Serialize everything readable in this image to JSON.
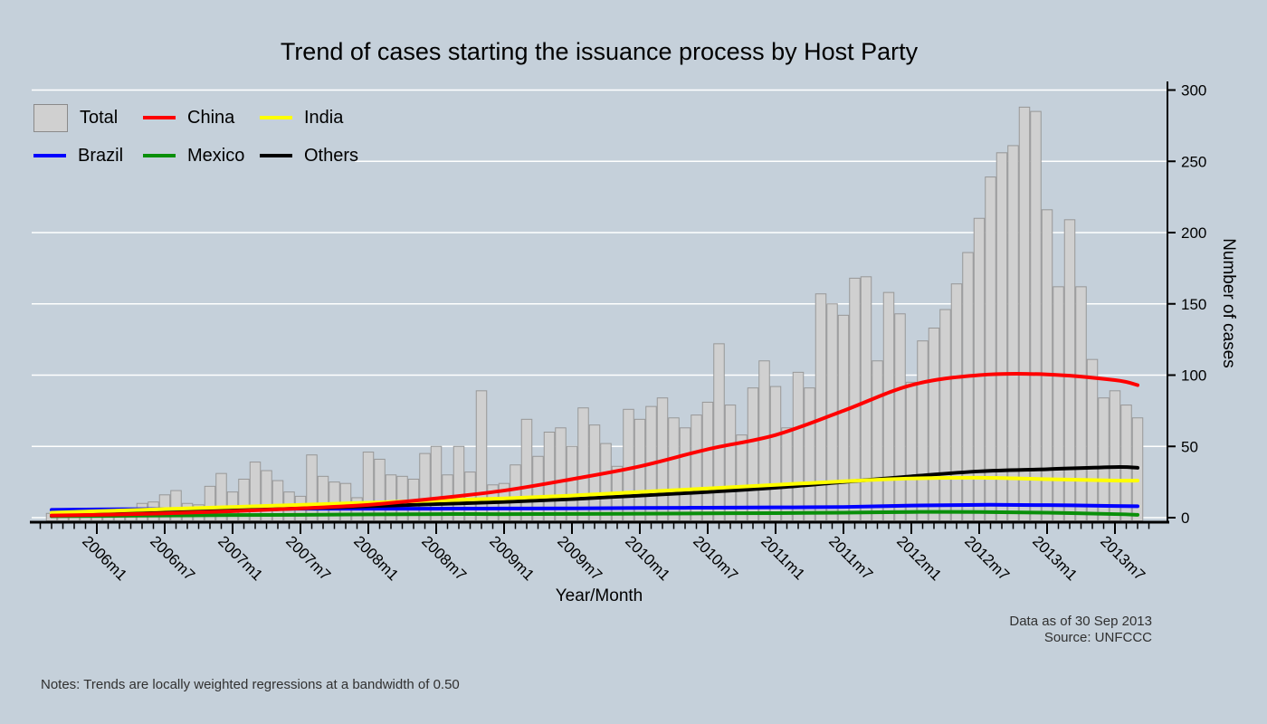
{
  "colors": {
    "background": "#c5d0da",
    "grid": "#ffffff",
    "axis": "#000000",
    "bar_fill": "#d0d0d0",
    "bar_stroke": "#979797"
  },
  "legend": {
    "items": [
      {
        "label": "Total",
        "type": "box",
        "color": "#d0d0d0",
        "border": "#8a8a8a"
      },
      {
        "label": "China",
        "type": "line",
        "color": "#ff0000"
      },
      {
        "label": "India",
        "type": "line",
        "color": "#ffff00"
      },
      {
        "label": "Brazil",
        "type": "line",
        "color": "#0000ff"
      },
      {
        "label": "Mexico",
        "type": "line",
        "color": "#0a8f0a"
      },
      {
        "label": "Others",
        "type": "line",
        "color": "#000000"
      }
    ]
  },
  "annotations": {
    "data_as_of": "Data as of 30 Sep 2013",
    "source": "Source: UNFCCC",
    "notes": "Notes: Trends are locally weighted regressions at a bandwidth of 0.50"
  },
  "chart_data": {
    "type": "bar+line",
    "title": "Trend of cases starting the issuance process by Host Party",
    "xlabel": "Year/Month",
    "ylabel": "Number of cases",
    "ylim": [
      0,
      300
    ],
    "y_ticks": [
      0,
      50,
      100,
      150,
      200,
      250,
      300
    ],
    "grid": true,
    "x_start_month": "2005m9",
    "x_tick_labels": [
      "2006m1",
      "2006m7",
      "2007m1",
      "2007m7",
      "2008m1",
      "2008m7",
      "2009m1",
      "2009m7",
      "2010m1",
      "2010m7",
      "2011m1",
      "2011m7",
      "2012m1",
      "2012m7",
      "2013m1",
      "2013m7"
    ],
    "x_tick_month_indices": [
      4,
      10,
      16,
      22,
      28,
      34,
      40,
      46,
      52,
      58,
      64,
      70,
      76,
      82,
      88,
      94
    ],
    "bars": {
      "name": "Total",
      "color": "#d0d0d0",
      "values": [
        3,
        2,
        3,
        4,
        4,
        5,
        3,
        6,
        10,
        11,
        16,
        19,
        10,
        9,
        22,
        31,
        18,
        27,
        39,
        33,
        26,
        18,
        15,
        44,
        29,
        25,
        24,
        14,
        46,
        41,
        30,
        29,
        27,
        45,
        50,
        30,
        50,
        32,
        89,
        23,
        24,
        37,
        69,
        43,
        60,
        63,
        50,
        77,
        65,
        52,
        36,
        76,
        69,
        78,
        84,
        70,
        63,
        72,
        81,
        122,
        79,
        58,
        91,
        110,
        92,
        63,
        102,
        91,
        157,
        150,
        142,
        168,
        169,
        110,
        158,
        143,
        95,
        124,
        133,
        146,
        164,
        186,
        210,
        239,
        256,
        261,
        288,
        285,
        216,
        162,
        209,
        162,
        111,
        84,
        89,
        79,
        70
      ]
    },
    "series": [
      {
        "name": "Mexico",
        "color": "#0a8f0a",
        "x": [
          0,
          4,
          10,
          16,
          22,
          28,
          34,
          40,
          46,
          52,
          58,
          64,
          70,
          76,
          82,
          88,
          94,
          96
        ],
        "values": [
          1,
          1.2,
          1.5,
          1.8,
          2,
          2.3,
          2.5,
          2.5,
          2.6,
          2.8,
          3,
          3.2,
          3.5,
          4,
          4,
          3.5,
          2.5,
          2
        ]
      },
      {
        "name": "Brazil",
        "color": "#0000ff",
        "x": [
          0,
          4,
          10,
          16,
          22,
          28,
          34,
          40,
          46,
          52,
          58,
          64,
          70,
          76,
          82,
          88,
          94,
          96
        ],
        "values": [
          5.5,
          5.8,
          6,
          6.2,
          6.3,
          6.3,
          6.3,
          6.4,
          6.5,
          6.8,
          7,
          7.2,
          7.5,
          8.5,
          9,
          8.8,
          8.2,
          8
        ]
      },
      {
        "name": "Others",
        "color": "#000000",
        "x": [
          0,
          4,
          10,
          16,
          22,
          28,
          34,
          40,
          46,
          52,
          58,
          64,
          70,
          76,
          82,
          88,
          94,
          96
        ],
        "values": [
          1.5,
          2.5,
          3.5,
          5,
          6.5,
          8,
          9.5,
          11,
          13,
          15.5,
          18,
          21,
          25,
          29,
          32.5,
          34,
          35.5,
          35
        ]
      },
      {
        "name": "India",
        "color": "#ffff00",
        "x": [
          0,
          4,
          10,
          16,
          22,
          28,
          34,
          40,
          46,
          52,
          58,
          64,
          70,
          76,
          82,
          88,
          94,
          96
        ],
        "values": [
          3.5,
          4.5,
          6,
          7.5,
          9,
          10.5,
          12,
          13.5,
          15.5,
          18,
          20.5,
          23,
          25.5,
          27.5,
          28,
          27,
          26,
          26
        ]
      },
      {
        "name": "China",
        "color": "#ff0000",
        "x": [
          0,
          4,
          10,
          16,
          22,
          28,
          34,
          40,
          46,
          52,
          58,
          64,
          70,
          76,
          82,
          88,
          94,
          96
        ],
        "values": [
          1.5,
          2,
          3,
          4.5,
          6.5,
          9,
          13.5,
          19,
          27,
          36,
          48,
          58,
          75,
          93,
          100,
          100.5,
          96.5,
          93
        ]
      }
    ]
  }
}
